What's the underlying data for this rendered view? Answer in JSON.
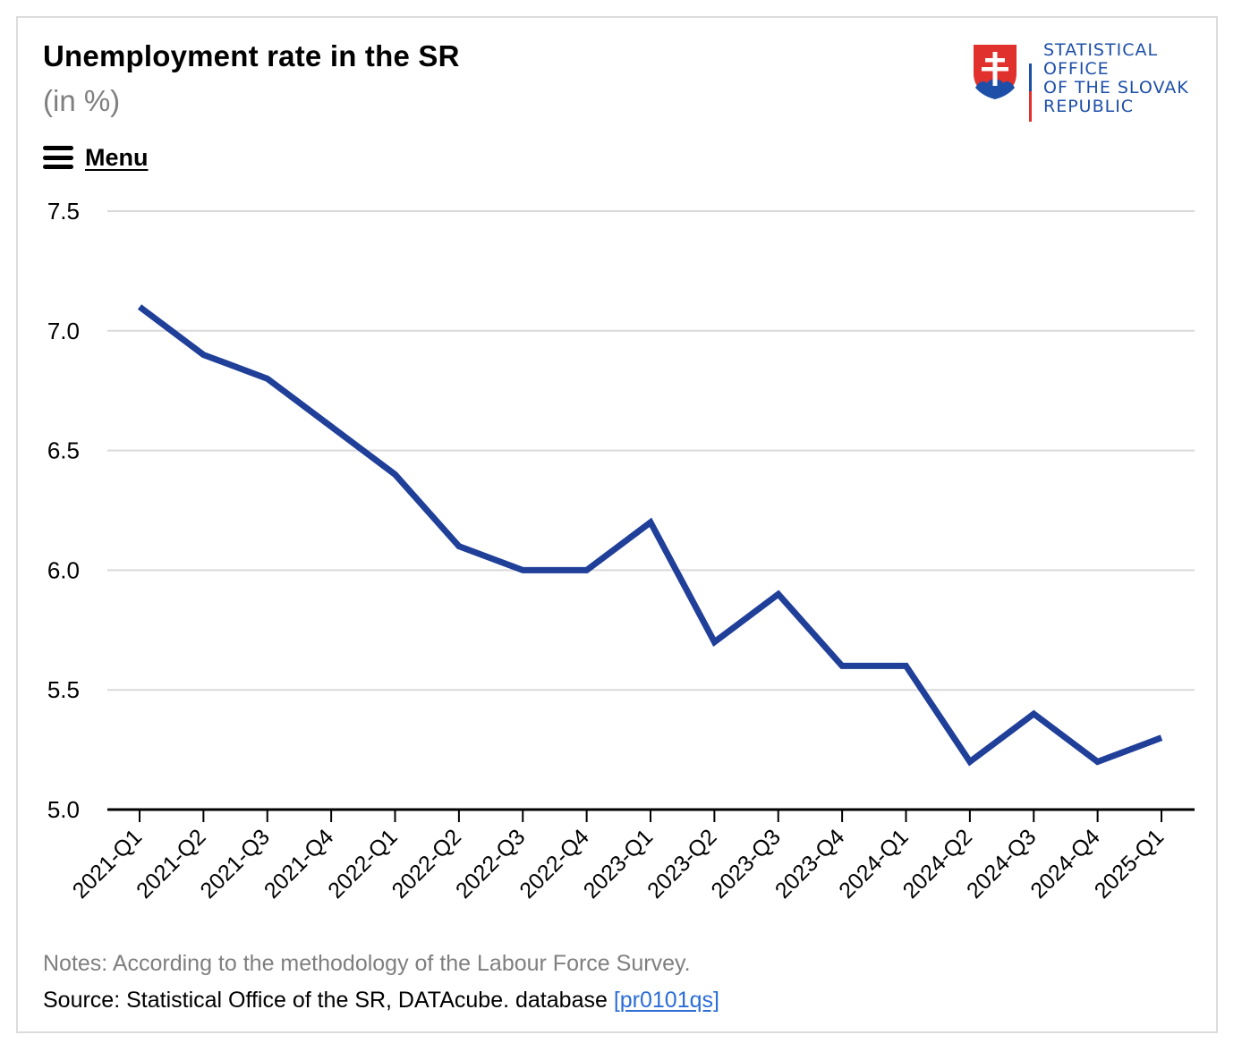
{
  "header": {
    "title": "Unemployment rate in the SR",
    "subtitle": "(in %)",
    "menu_label": "Menu"
  },
  "logo": {
    "lines": [
      "STATISTICAL",
      "OFFICE",
      "OF THE SLOVAK",
      "REPUBLIC"
    ],
    "colors": {
      "text": "#1d4fa8",
      "shield_red": "#e0312d",
      "shield_blue": "#1d4fa8"
    }
  },
  "footer": {
    "notes": "Notes: According to the methodology of the Labour Force Survey.",
    "source_text": "Source: Statistical Office of the SR, DATAcube. database ",
    "source_link": "[pr0101qs]"
  },
  "chart_data": {
    "type": "line",
    "title": "Unemployment rate in the SR",
    "subtitle": "(in %)",
    "xlabel": "",
    "ylabel": "",
    "categories": [
      "2021-Q1",
      "2021-Q2",
      "2021-Q3",
      "2021-Q4",
      "2022-Q1",
      "2022-Q2",
      "2022-Q3",
      "2022-Q4",
      "2023-Q1",
      "2023-Q2",
      "2023-Q3",
      "2023-Q4",
      "2024-Q1",
      "2024-Q2",
      "2024-Q3",
      "2024-Q4",
      "2025-Q1"
    ],
    "series": [
      {
        "values": [
          7.1,
          6.9,
          6.8,
          6.6,
          6.4,
          6.1,
          6.0,
          6.0,
          6.2,
          5.7,
          5.9,
          5.6,
          5.6,
          5.2,
          5.4,
          5.2,
          5.3
        ],
        "color": "#1f3f99"
      }
    ],
    "ylim": [
      5.0,
      7.5
    ],
    "yticks": [
      "5.0",
      "5.5",
      "6.0",
      "6.5",
      "7.0",
      "7.5"
    ],
    "grid": true,
    "legend": "none"
  }
}
